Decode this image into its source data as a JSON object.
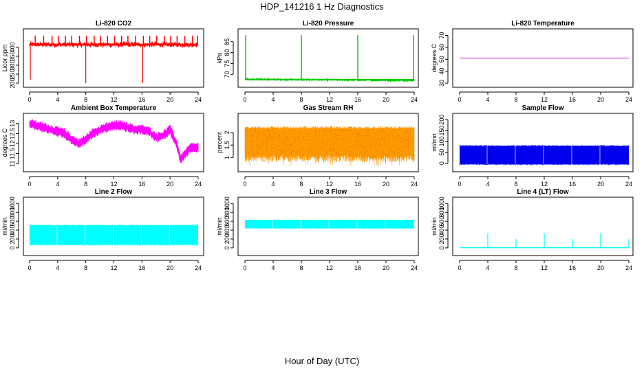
{
  "page": {
    "title": "HDP_141216  1 Hz Diagnostics",
    "xlabel": "Hour of Day (UTC)"
  },
  "chart_data": [
    {
      "id": "co2",
      "type": "line",
      "title": "Li-820 CO2",
      "ylabel": "Licor ppm",
      "xlim": [
        0,
        24
      ],
      "ylim": [
        200,
        480
      ],
      "xticks": [
        0,
        4,
        8,
        12,
        16,
        20,
        24
      ],
      "yticks": [
        200,
        250,
        300,
        350,
        400
      ],
      "color": "#ff0000",
      "pattern": "baseline_spikes",
      "baseline": 415,
      "band": 12,
      "spikes_up": [
        0.8,
        2,
        3.2,
        4.1,
        5.1,
        6,
        7.1,
        8.1,
        9.2,
        10.1,
        11.1,
        12.1,
        13.1,
        14,
        15.1,
        16.2,
        17.1,
        18.1,
        19.2,
        20.1,
        21,
        22.1,
        23.2,
        23.9
      ],
      "spike_up_value": 465,
      "spikes_down": [
        {
          "x": 0.1,
          "y": 220
        },
        {
          "x": 8.0,
          "y": 200
        },
        {
          "x": 16.1,
          "y": 200
        }
      ]
    },
    {
      "id": "pressure",
      "type": "line",
      "title": "Li-820 Pressure",
      "ylabel": "kPa",
      "xlim": [
        0,
        24
      ],
      "ylim": [
        66,
        89
      ],
      "xticks": [
        0,
        4,
        8,
        12,
        16,
        20,
        24
      ],
      "yticks": [
        70,
        75,
        80,
        85
      ],
      "color": "#00cc00",
      "pattern": "baseline_spikes",
      "baseline": 67.8,
      "band": 0.3,
      "drift": -0.6,
      "spikes_up": [
        0.1,
        8.0,
        16.0,
        23.9
      ],
      "spike_up_value": 88,
      "spikes_down": []
    },
    {
      "id": "licor_temp",
      "type": "line",
      "title": "Li-820 Temperature",
      "ylabel": "degrees C",
      "xlim": [
        0,
        24
      ],
      "ylim": [
        30,
        72
      ],
      "xticks": [
        0,
        4,
        8,
        12,
        16,
        20,
        24
      ],
      "yticks": [
        30,
        40,
        50,
        60,
        70
      ],
      "color": "#cc00cc",
      "pattern": "flat",
      "baseline": 51,
      "band": 0,
      "spikes_up": [],
      "spikes_down": []
    },
    {
      "id": "ambient_temp",
      "type": "line",
      "title": "Ambient Box Temperature",
      "ylabel": "degrees C",
      "xlim": [
        0,
        24
      ],
      "ylim": [
        10.8,
        13.3
      ],
      "xticks": [
        0,
        4,
        8,
        12,
        16,
        20,
        24
      ],
      "yticks": [
        11.0,
        11.5,
        12.0,
        12.5,
        13.0
      ],
      "color": "#ff00ff",
      "pattern": "curve",
      "band": 0.25,
      "curve_x": [
        0,
        1,
        2,
        3,
        4,
        5,
        6,
        7,
        8,
        9,
        10,
        11,
        12,
        13,
        14,
        15,
        16,
        17,
        18,
        19,
        20,
        21,
        21.5,
        22,
        23,
        24
      ],
      "curve_y": [
        13.0,
        12.9,
        12.8,
        12.7,
        12.6,
        12.5,
        12.2,
        12.0,
        12.2,
        12.5,
        12.7,
        12.8,
        12.9,
        12.9,
        12.8,
        12.7,
        12.7,
        12.6,
        12.3,
        12.4,
        12.7,
        11.9,
        11.2,
        11.4,
        11.8,
        11.8
      ]
    },
    {
      "id": "rh",
      "type": "line",
      "title": "Gas Stream RH",
      "ylabel": "percent",
      "xlim": [
        0,
        24
      ],
      "ylim": [
        0.6,
        2.6
      ],
      "xticks": [
        0,
        4,
        8,
        12,
        16,
        20,
        24
      ],
      "yticks": [
        1.0,
        1.5,
        2.0
      ],
      "color": "#ff9900",
      "pattern": "noise_band",
      "upper": 2.25,
      "lower": 1.0,
      "upper_jitter": 0.1,
      "lower_jitter": 0.25
    },
    {
      "id": "sample_flow",
      "type": "line",
      "title": "Sample Flow",
      "ylabel": "ml/min",
      "xlim": [
        0,
        24
      ],
      "ylim": [
        -20,
        210
      ],
      "xticks": [
        0,
        4,
        8,
        12,
        16,
        20,
        24
      ],
      "yticks": [
        0,
        50,
        100,
        150,
        200
      ],
      "color": "#0000ee",
      "pattern": "block",
      "upper": 80,
      "lower": -5,
      "gaps": [
        3.9,
        7.9,
        11.9,
        15.9,
        19.9
      ]
    },
    {
      "id": "line2",
      "type": "line",
      "title": "Line 2 Flow",
      "ylabel": "ml/min",
      "xlim": [
        0,
        24
      ],
      "ylim": [
        -80,
        1050
      ],
      "xticks": [
        0,
        4,
        8,
        12,
        16,
        20,
        24
      ],
      "yticks": [
        0,
        200,
        400,
        600,
        800,
        1000
      ],
      "color": "#00ffff",
      "pattern": "block",
      "upper": 510,
      "lower": 70,
      "gaps": [
        3.9,
        7.9,
        11.9,
        15.9,
        19.9
      ]
    },
    {
      "id": "line3",
      "type": "line",
      "title": "Line 3 Flow",
      "ylabel": "ml/min",
      "xlim": [
        0,
        24
      ],
      "ylim": [
        -80,
        1050
      ],
      "xticks": [
        0,
        4,
        8,
        12,
        16,
        20,
        24
      ],
      "yticks": [
        0,
        200,
        400,
        600,
        800,
        1000
      ],
      "color": "#00ffff",
      "pattern": "block",
      "upper": 630,
      "lower": 440,
      "gaps": [
        3.9,
        7.9,
        11.9,
        15.9,
        19.9
      ]
    },
    {
      "id": "line4",
      "type": "line",
      "title": "Line 4 (LT) Flow",
      "ylabel": "ml/min",
      "xlim": [
        0,
        24
      ],
      "ylim": [
        -80,
        1050
      ],
      "xticks": [
        0,
        4,
        8,
        12,
        16,
        20,
        24
      ],
      "yticks": [
        0,
        200,
        400,
        600,
        800,
        1000
      ],
      "color": "#00ffff",
      "pattern": "baseline_spikes",
      "baseline": 5,
      "band": 0,
      "spikes_up": [],
      "spikes_down": [],
      "spikes_custom": [
        {
          "x": 4.0,
          "y": 330
        },
        {
          "x": 8.0,
          "y": 200
        },
        {
          "x": 12.0,
          "y": 330
        },
        {
          "x": 16.0,
          "y": 200
        },
        {
          "x": 20.0,
          "y": 330
        },
        {
          "x": 24.0,
          "y": 200
        }
      ]
    }
  ]
}
